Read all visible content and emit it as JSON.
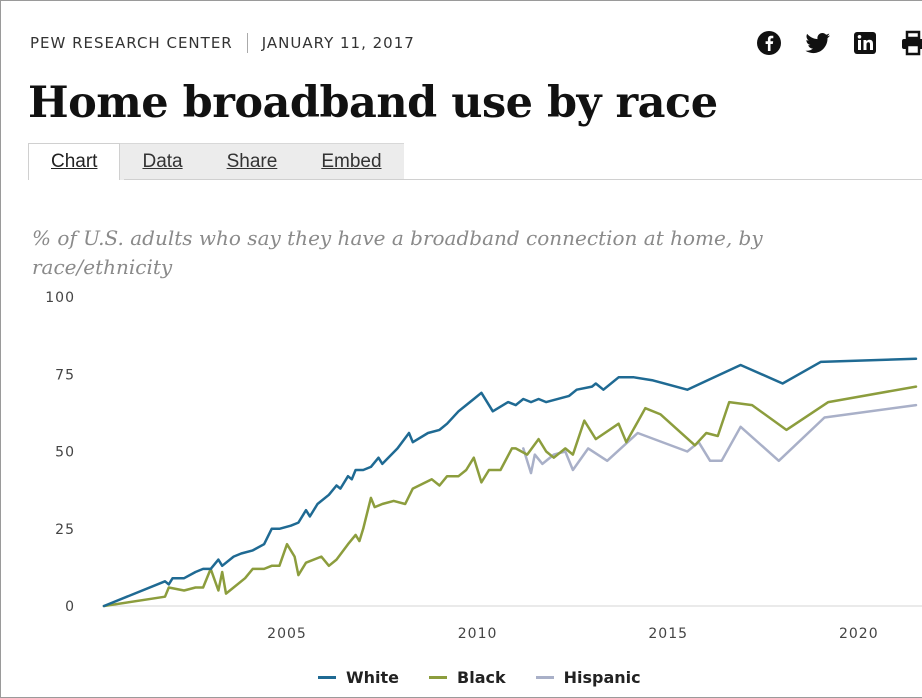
{
  "header": {
    "source": "PEW RESEARCH CENTER",
    "date": "JANUARY 11, 2017",
    "share_icons": [
      "facebook-icon",
      "twitter-icon",
      "linkedin-icon",
      "print-icon"
    ]
  },
  "title": "Home broadband use by race",
  "tabs": [
    {
      "label": "Chart",
      "active": true
    },
    {
      "label": "Data",
      "active": false
    },
    {
      "label": "Share",
      "active": false
    },
    {
      "label": "Embed",
      "active": false
    }
  ],
  "subtitle": "% of U.S. adults who say they have a broadband connection at home, by race/ethnicity",
  "colors": {
    "white": "#1f6a93",
    "black": "#8c9d3d",
    "hispanic": "#a9b0c8"
  },
  "chart_data": {
    "type": "line",
    "title": "",
    "xlabel": "",
    "ylabel": "",
    "xlim": [
      2000.2,
      2021.5
    ],
    "ylim": [
      0,
      100
    ],
    "x_ticks": [
      2005,
      2010,
      2015,
      2020
    ],
    "y_ticks": [
      0,
      25,
      50,
      75,
      100
    ],
    "grid": "horizontal baseline only",
    "legend_position": "bottom",
    "series": [
      {
        "name": "White",
        "color": "#1f6a93",
        "points": [
          [
            2000.2,
            0
          ],
          [
            2001.8,
            8
          ],
          [
            2001.9,
            7
          ],
          [
            2002.0,
            9
          ],
          [
            2002.3,
            9
          ],
          [
            2002.6,
            11
          ],
          [
            2002.8,
            12
          ],
          [
            2003.0,
            12
          ],
          [
            2003.2,
            15
          ],
          [
            2003.3,
            13
          ],
          [
            2003.6,
            16
          ],
          [
            2003.8,
            17
          ],
          [
            2004.1,
            18
          ],
          [
            2004.4,
            20
          ],
          [
            2004.6,
            25
          ],
          [
            2004.8,
            25
          ],
          [
            2005.1,
            26
          ],
          [
            2005.3,
            27
          ],
          [
            2005.5,
            31
          ],
          [
            2005.6,
            29
          ],
          [
            2005.8,
            33
          ],
          [
            2006.1,
            36
          ],
          [
            2006.3,
            39
          ],
          [
            2006.4,
            38
          ],
          [
            2006.6,
            42
          ],
          [
            2006.7,
            41
          ],
          [
            2006.8,
            44
          ],
          [
            2007.0,
            44
          ],
          [
            2007.2,
            45
          ],
          [
            2007.4,
            48
          ],
          [
            2007.5,
            46
          ],
          [
            2007.9,
            51
          ],
          [
            2008.2,
            56
          ],
          [
            2008.3,
            53
          ],
          [
            2008.7,
            56
          ],
          [
            2009.0,
            57
          ],
          [
            2009.2,
            59
          ],
          [
            2009.5,
            63
          ],
          [
            2009.7,
            65
          ],
          [
            2009.9,
            67
          ],
          [
            2010.1,
            69
          ],
          [
            2010.4,
            63
          ],
          [
            2010.8,
            66
          ],
          [
            2011.0,
            65
          ],
          [
            2011.2,
            67
          ],
          [
            2011.4,
            66
          ],
          [
            2011.6,
            67
          ],
          [
            2011.8,
            66
          ],
          [
            2012.4,
            68
          ],
          [
            2012.6,
            70
          ],
          [
            2013.0,
            71
          ],
          [
            2013.1,
            72
          ],
          [
            2013.3,
            70
          ],
          [
            2013.7,
            74
          ],
          [
            2014.1,
            74
          ],
          [
            2014.6,
            73
          ],
          [
            2015.5,
            70
          ],
          [
            2016.9,
            78
          ],
          [
            2018.0,
            72
          ],
          [
            2019.0,
            79
          ],
          [
            2021.5,
            80
          ]
        ]
      },
      {
        "name": "Black",
        "color": "#8c9d3d",
        "points": [
          [
            2000.2,
            0
          ],
          [
            2001.8,
            3
          ],
          [
            2001.9,
            6
          ],
          [
            2002.3,
            5
          ],
          [
            2002.6,
            6
          ],
          [
            2002.8,
            6
          ],
          [
            2003.0,
            12
          ],
          [
            2003.2,
            5
          ],
          [
            2003.3,
            11
          ],
          [
            2003.4,
            4
          ],
          [
            2003.6,
            6
          ],
          [
            2003.9,
            9
          ],
          [
            2004.1,
            12
          ],
          [
            2004.4,
            12
          ],
          [
            2004.6,
            13
          ],
          [
            2004.8,
            13
          ],
          [
            2005.0,
            20
          ],
          [
            2005.2,
            16
          ],
          [
            2005.3,
            10
          ],
          [
            2005.5,
            14
          ],
          [
            2005.9,
            16
          ],
          [
            2006.1,
            13
          ],
          [
            2006.3,
            15
          ],
          [
            2006.6,
            20
          ],
          [
            2006.8,
            23
          ],
          [
            2006.9,
            21
          ],
          [
            2007.0,
            25
          ],
          [
            2007.2,
            35
          ],
          [
            2007.3,
            32
          ],
          [
            2007.5,
            33
          ],
          [
            2007.8,
            34
          ],
          [
            2008.1,
            33
          ],
          [
            2008.3,
            38
          ],
          [
            2008.8,
            41
          ],
          [
            2009.0,
            39
          ],
          [
            2009.2,
            42
          ],
          [
            2009.5,
            42
          ],
          [
            2009.7,
            44
          ],
          [
            2009.9,
            48
          ],
          [
            2010.1,
            40
          ],
          [
            2010.3,
            44
          ],
          [
            2010.6,
            44
          ],
          [
            2010.9,
            51
          ],
          [
            2011.0,
            51
          ],
          [
            2011.3,
            49
          ],
          [
            2011.6,
            54
          ],
          [
            2011.8,
            50
          ],
          [
            2012.0,
            48
          ],
          [
            2012.3,
            51
          ],
          [
            2012.5,
            49
          ],
          [
            2012.8,
            60
          ],
          [
            2013.1,
            54
          ],
          [
            2013.7,
            59
          ],
          [
            2013.9,
            53
          ],
          [
            2014.4,
            64
          ],
          [
            2014.8,
            62
          ],
          [
            2015.7,
            52
          ],
          [
            2016.0,
            56
          ],
          [
            2016.3,
            55
          ],
          [
            2016.6,
            66
          ],
          [
            2017.2,
            65
          ],
          [
            2018.1,
            57
          ],
          [
            2019.2,
            66
          ],
          [
            2021.5,
            71
          ]
        ]
      },
      {
        "name": "Hispanic",
        "color": "#a9b0c8",
        "points": [
          [
            2011.2,
            51
          ],
          [
            2011.4,
            43
          ],
          [
            2011.5,
            49
          ],
          [
            2011.7,
            46
          ],
          [
            2012.0,
            49
          ],
          [
            2012.3,
            50
          ],
          [
            2012.5,
            44
          ],
          [
            2012.9,
            51
          ],
          [
            2013.4,
            47
          ],
          [
            2014.2,
            56
          ],
          [
            2015.5,
            50
          ],
          [
            2015.8,
            53
          ],
          [
            2016.1,
            47
          ],
          [
            2016.4,
            47
          ],
          [
            2016.9,
            58
          ],
          [
            2017.9,
            47
          ],
          [
            2019.1,
            61
          ],
          [
            2021.5,
            65
          ]
        ]
      }
    ]
  }
}
